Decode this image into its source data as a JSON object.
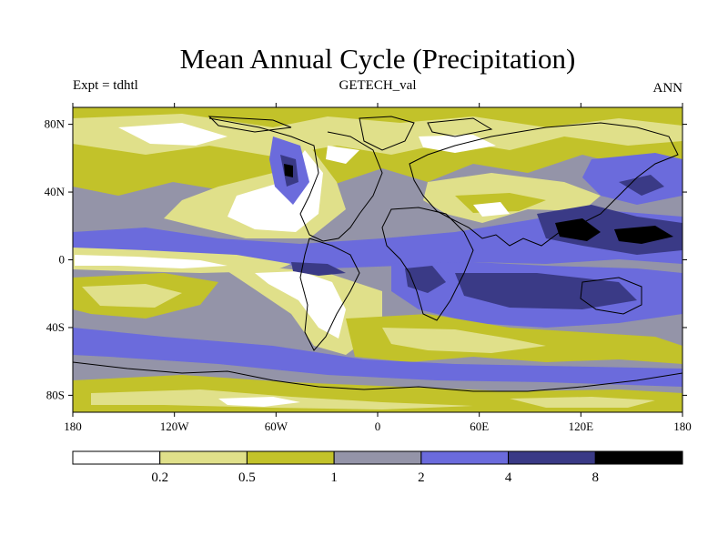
{
  "chart_data": {
    "type": "heatmap",
    "title": "Mean Annual Cycle (Precipitation)",
    "left_subtitle": "Expt = tdhtl",
    "center_subtitle": "GETECH_val",
    "right_subtitle": "ANN",
    "projection": "cylindrical equidistant",
    "xlim": [
      -180,
      180
    ],
    "ylim": [
      -90,
      90
    ],
    "x_ticks": [
      {
        "value": -180,
        "label": "180"
      },
      {
        "value": -120,
        "label": "120W"
      },
      {
        "value": -60,
        "label": "60W"
      },
      {
        "value": 0,
        "label": "0"
      },
      {
        "value": 60,
        "label": "60E"
      },
      {
        "value": 120,
        "label": "120E"
      },
      {
        "value": 180,
        "label": "180"
      }
    ],
    "y_ticks": [
      {
        "value": 80,
        "label": "80N"
      },
      {
        "value": 40,
        "label": "40N"
      },
      {
        "value": 0,
        "label": "0"
      },
      {
        "value": -40,
        "label": "40S"
      },
      {
        "value": -80,
        "label": "80S"
      }
    ],
    "colorbar": {
      "levels": [
        0.2,
        0.5,
        1,
        2,
        4,
        8
      ],
      "labels": [
        "0.2",
        "0.5",
        "1",
        "2",
        "4",
        "8"
      ],
      "colors": [
        "#ffffff",
        "#e0e08a",
        "#c2c22a",
        "#9494a8",
        "#6b6bdc",
        "#3a3a86",
        "#000000"
      ]
    },
    "field_categories": [
      "<0.2",
      "0.2-0.5",
      "0.5-1",
      "1-2",
      "2-4",
      "4-8",
      ">8"
    ]
  }
}
